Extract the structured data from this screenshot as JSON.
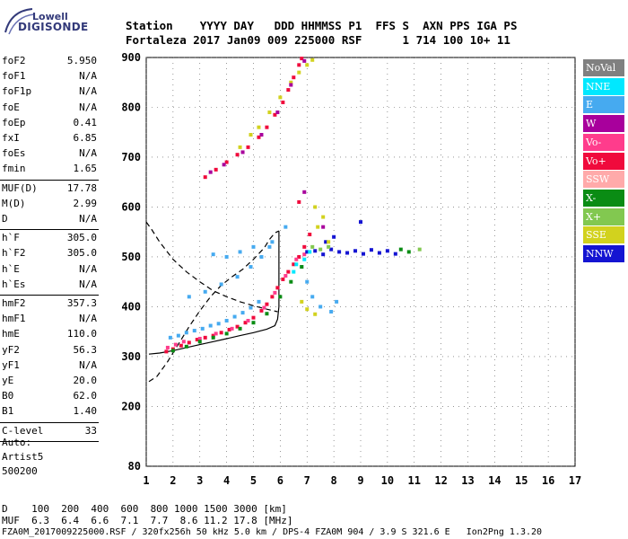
{
  "logo": {
    "line1": "Lowell",
    "line2": "DIGISONDE"
  },
  "header": {
    "line1": "Station    YYYY DAY   DDD HHMMSS P1  FFS S  AXN PPS IGA PS",
    "line2": "Fortaleza 2017 Jan09 009 225000 RSF      1 714 100 10+ 11"
  },
  "params_group1": [
    {
      "name": "foF2",
      "value": "5.950"
    },
    {
      "name": "foF1",
      "value": "N/A"
    },
    {
      "name": "foF1p",
      "value": "N/A"
    },
    {
      "name": "foE",
      "value": "N/A"
    },
    {
      "name": "foEp",
      "value": "0.41"
    },
    {
      "name": "fxI",
      "value": "6.85"
    },
    {
      "name": "foEs",
      "value": "N/A"
    },
    {
      "name": "fmin",
      "value": "1.65"
    }
  ],
  "params_group2": [
    {
      "name": "MUF(D)",
      "value": "17.78"
    },
    {
      "name": "M(D)",
      "value": "2.99"
    },
    {
      "name": "D",
      "value": "N/A"
    }
  ],
  "params_group3": [
    {
      "name": "h`F",
      "value": "305.0"
    },
    {
      "name": "h`F2",
      "value": "305.0"
    },
    {
      "name": "h`E",
      "value": "N/A"
    },
    {
      "name": "h`Es",
      "value": "N/A"
    }
  ],
  "params_group4": [
    {
      "name": "hmF2",
      "value": "357.3"
    },
    {
      "name": "hmF1",
      "value": "N/A"
    },
    {
      "name": "hmE",
      "value": "110.0"
    },
    {
      "name": "yF2",
      "value": "56.3"
    },
    {
      "name": "yF1",
      "value": "N/A"
    },
    {
      "name": "yE",
      "value": "20.0"
    },
    {
      "name": "B0",
      "value": "62.0"
    },
    {
      "name": "B1",
      "value": "1.40"
    }
  ],
  "params_group5": [
    {
      "name": "C-level",
      "value": "33"
    }
  ],
  "auto": {
    "line1": "Auto:",
    "line2": "Artist5",
    "line3": "500200"
  },
  "bottom": {
    "d_line": "D    100  200  400  600  800 1000 1500 3000 [km]",
    "muf_line": "MUF  6.3  6.4  6.6  7.1  7.7  8.6 11.2 17.8 [MHz]",
    "footer": "FZA0M_2017009225000.RSF / 320fx256h 50 kHz 5.0 km / DPS-4 FZA0M 904 / 3.9 S 321.6 E   Ion2Png 1.3.20"
  },
  "legend": [
    {
      "label": "NoVal",
      "color": "#808080"
    },
    {
      "label": "NNE",
      "color": "#00e8ff"
    },
    {
      "label": "E",
      "color": "#46aaf0"
    },
    {
      "label": "W",
      "color": "#a8009c"
    },
    {
      "label": "Vo-",
      "color": "#ff3c8c"
    },
    {
      "label": "Vo+",
      "color": "#f00a3c"
    },
    {
      "label": "SSW",
      "color": "#ffaaaa"
    },
    {
      "label": "X-",
      "color": "#0a8c14"
    },
    {
      "label": "X+",
      "color": "#82c850"
    },
    {
      "label": "SSE",
      "color": "#d2d21e"
    },
    {
      "label": "NNW",
      "color": "#1414d2"
    }
  ],
  "chart_data": {
    "type": "scatter",
    "xlim": [
      1,
      17
    ],
    "ylim": [
      80,
      900
    ],
    "xticks": [
      1,
      2,
      3,
      4,
      5,
      6,
      7,
      8,
      9,
      10,
      11,
      12,
      13,
      14,
      15,
      16,
      17
    ],
    "yticks": [
      80,
      200,
      300,
      400,
      500,
      600,
      700,
      800,
      900
    ],
    "grid": true,
    "legend_position": "right",
    "series": [
      {
        "name": "E",
        "color": "#46aaf0",
        "points": [
          [
            1.9,
            338
          ],
          [
            2.2,
            342
          ],
          [
            2.5,
            348
          ],
          [
            2.8,
            352
          ],
          [
            3.1,
            356
          ],
          [
            3.4,
            362
          ],
          [
            3.7,
            366
          ],
          [
            4.0,
            372
          ],
          [
            4.3,
            380
          ],
          [
            4.6,
            388
          ],
          [
            4.9,
            398
          ],
          [
            5.2,
            410
          ],
          [
            2.6,
            420
          ],
          [
            3.2,
            430
          ],
          [
            3.8,
            445
          ],
          [
            4.4,
            460
          ],
          [
            4.9,
            480
          ],
          [
            5.3,
            500
          ],
          [
            5.6,
            520
          ],
          [
            4.0,
            500
          ],
          [
            4.5,
            510
          ],
          [
            5.0,
            520
          ],
          [
            3.5,
            505
          ],
          [
            6.8,
            480
          ],
          [
            7.0,
            450
          ],
          [
            7.2,
            420
          ],
          [
            7.5,
            400
          ],
          [
            7.9,
            390
          ],
          [
            8.1,
            410
          ],
          [
            5.7,
            530
          ],
          [
            6.2,
            560
          ]
        ]
      },
      {
        "name": "Vo+",
        "color": "#f00a3c",
        "points": [
          [
            1.75,
            310
          ],
          [
            2.0,
            315
          ],
          [
            2.3,
            322
          ],
          [
            2.6,
            328
          ],
          [
            2.9,
            334
          ],
          [
            3.2,
            338
          ],
          [
            3.5,
            342
          ],
          [
            3.8,
            348
          ],
          [
            4.1,
            354
          ],
          [
            4.4,
            360
          ],
          [
            4.7,
            368
          ],
          [
            5.0,
            378
          ],
          [
            5.3,
            392
          ],
          [
            5.5,
            405
          ],
          [
            5.7,
            420
          ],
          [
            5.9,
            438
          ],
          [
            6.1,
            455
          ],
          [
            6.3,
            470
          ],
          [
            6.5,
            485
          ],
          [
            6.7,
            500
          ],
          [
            6.9,
            520
          ],
          [
            3.2,
            660
          ],
          [
            3.6,
            675
          ],
          [
            4.0,
            690
          ],
          [
            4.4,
            705
          ],
          [
            4.8,
            720
          ],
          [
            5.2,
            740
          ],
          [
            5.5,
            760
          ],
          [
            5.8,
            785
          ],
          [
            6.1,
            810
          ],
          [
            6.3,
            835
          ],
          [
            6.5,
            860
          ],
          [
            6.7,
            885
          ],
          [
            6.8,
            898
          ],
          [
            6.7,
            610
          ],
          [
            7.1,
            545
          ]
        ]
      },
      {
        "name": "Vo-",
        "color": "#ff3c8c",
        "points": [
          [
            1.8,
            318
          ],
          [
            2.1,
            324
          ],
          [
            2.4,
            330
          ],
          [
            3.0,
            336
          ],
          [
            3.6,
            346
          ],
          [
            4.2,
            356
          ],
          [
            4.8,
            372
          ],
          [
            5.4,
            398
          ],
          [
            5.8,
            428
          ],
          [
            6.2,
            462
          ],
          [
            6.6,
            495
          ],
          [
            6.9,
            505
          ]
        ]
      },
      {
        "name": "X-",
        "color": "#0a8c14",
        "points": [
          [
            2.0,
            312
          ],
          [
            2.5,
            320
          ],
          [
            3.0,
            330
          ],
          [
            3.5,
            338
          ],
          [
            4.0,
            346
          ],
          [
            4.5,
            356
          ],
          [
            5.0,
            368
          ],
          [
            5.5,
            386
          ],
          [
            6.0,
            420
          ],
          [
            6.4,
            450
          ],
          [
            6.8,
            480
          ],
          [
            10.5,
            515
          ],
          [
            10.8,
            510
          ]
        ]
      },
      {
        "name": "NNW",
        "color": "#1414d2",
        "points": [
          [
            7.0,
            510
          ],
          [
            7.3,
            512
          ],
          [
            7.6,
            505
          ],
          [
            7.9,
            515
          ],
          [
            8.2,
            510
          ],
          [
            8.5,
            508
          ],
          [
            8.8,
            512
          ],
          [
            9.1,
            506
          ],
          [
            9.4,
            514
          ],
          [
            9.7,
            508
          ],
          [
            10.0,
            512
          ],
          [
            10.3,
            506
          ],
          [
            8.0,
            540
          ],
          [
            9.0,
            570
          ],
          [
            7.7,
            530
          ]
        ]
      },
      {
        "name": "SSE",
        "color": "#d2d21e",
        "points": [
          [
            5.2,
            760
          ],
          [
            5.6,
            790
          ],
          [
            6.0,
            820
          ],
          [
            6.4,
            850
          ],
          [
            6.7,
            870
          ],
          [
            7.0,
            885
          ],
          [
            7.2,
            895
          ],
          [
            7.4,
            560
          ],
          [
            7.6,
            580
          ],
          [
            7.3,
            600
          ],
          [
            7.8,
            530
          ],
          [
            6.8,
            410
          ],
          [
            7.0,
            395
          ],
          [
            7.3,
            385
          ],
          [
            4.5,
            720
          ],
          [
            4.9,
            745
          ]
        ]
      },
      {
        "name": "W",
        "color": "#a8009c",
        "points": [
          [
            3.4,
            670
          ],
          [
            3.9,
            685
          ],
          [
            4.6,
            710
          ],
          [
            5.3,
            745
          ],
          [
            5.9,
            790
          ],
          [
            6.4,
            845
          ],
          [
            6.9,
            893
          ],
          [
            6.9,
            630
          ],
          [
            7.6,
            560
          ]
        ]
      },
      {
        "name": "NNE",
        "color": "#00e8ff",
        "points": [
          [
            6.5,
            470
          ],
          [
            6.6,
            485
          ],
          [
            6.9,
            495
          ],
          [
            7.1,
            510
          ]
        ]
      },
      {
        "name": "X+",
        "color": "#82c850",
        "points": [
          [
            7.2,
            520
          ],
          [
            7.5,
            515
          ],
          [
            7.8,
            520
          ],
          [
            11.2,
            515
          ]
        ]
      }
    ],
    "lines": [
      {
        "name": "profile-solid",
        "style": "solid",
        "points": [
          [
            1.1,
            305
          ],
          [
            1.5,
            307
          ],
          [
            2.0,
            312
          ],
          [
            2.5,
            318
          ],
          [
            3.0,
            324
          ],
          [
            3.5,
            330
          ],
          [
            4.0,
            336
          ],
          [
            4.5,
            342
          ],
          [
            5.0,
            348
          ],
          [
            5.5,
            355
          ],
          [
            5.8,
            362
          ],
          [
            5.9,
            375
          ],
          [
            5.95,
            400
          ],
          [
            5.95,
            450
          ],
          [
            5.95,
            510
          ],
          [
            5.95,
            552
          ]
        ]
      },
      {
        "name": "profile-dashed",
        "style": "dashed",
        "points": [
          [
            1.1,
            250
          ],
          [
            1.4,
            260
          ],
          [
            1.8,
            290
          ],
          [
            2.2,
            325
          ],
          [
            2.6,
            360
          ],
          [
            3.0,
            392
          ],
          [
            3.4,
            420
          ],
          [
            3.8,
            443
          ],
          [
            4.2,
            460
          ],
          [
            4.6,
            475
          ],
          [
            5.0,
            495
          ],
          [
            5.4,
            518
          ],
          [
            5.6,
            535
          ],
          [
            5.8,
            548
          ],
          [
            5.95,
            552
          ]
        ]
      },
      {
        "name": "profile-dashed-upper",
        "style": "dashed",
        "points": [
          [
            1.0,
            570
          ],
          [
            1.2,
            555
          ],
          [
            1.5,
            530
          ],
          [
            2.0,
            495
          ],
          [
            2.5,
            470
          ],
          [
            3.0,
            450
          ],
          [
            3.5,
            432
          ],
          [
            4.0,
            420
          ],
          [
            4.5,
            410
          ],
          [
            5.0,
            402
          ],
          [
            5.5,
            395
          ],
          [
            5.9,
            390
          ]
        ]
      }
    ]
  }
}
